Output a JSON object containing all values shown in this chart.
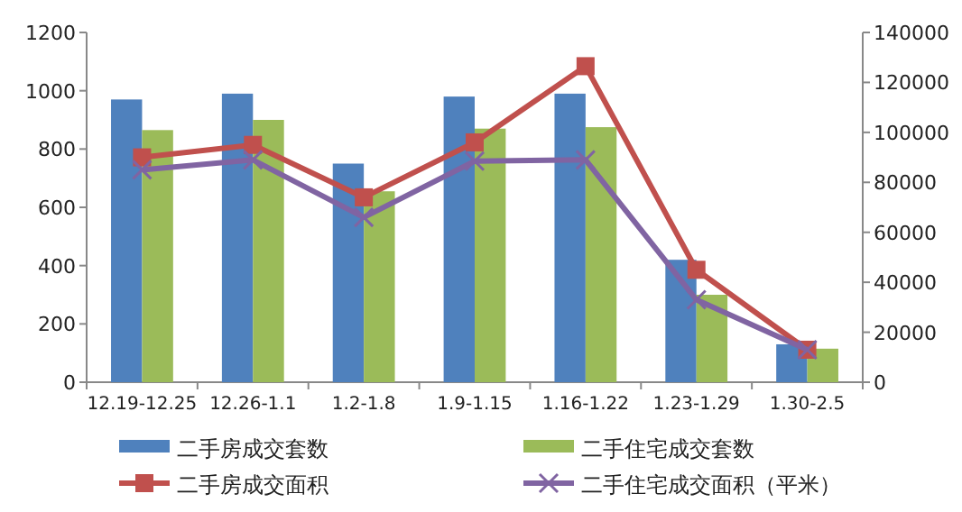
{
  "chart_data": {
    "type": "bar",
    "categories": [
      "12.19-12.25",
      "12.26-1.1",
      "1.2-1.8",
      "1.9-1.15",
      "1.16-1.22",
      "1.23-1.29",
      "1.30-2.5"
    ],
    "ylim": [
      0,
      1200
    ],
    "yticks": [
      0,
      200,
      400,
      600,
      800,
      1000,
      1200
    ],
    "y2lim": [
      0,
      140000
    ],
    "y2ticks": [
      0,
      20000,
      40000,
      60000,
      80000,
      100000,
      120000,
      140000
    ],
    "legend": "bottom",
    "grid": false,
    "series": [
      {
        "name": "二手房成交套数",
        "color": "#4f81bd",
        "values": [
          970,
          990,
          750,
          980,
          990,
          420,
          130
        ]
      },
      {
        "name": "二手住宅成交套数",
        "color": "#9bbb59",
        "values": [
          865,
          900,
          655,
          870,
          875,
          300,
          115
        ]
      },
      {
        "name": "二手房成交面积",
        "type": "line",
        "axis": "y2",
        "marker": "square",
        "color": "#c0504d",
        "values": [
          90000,
          95000,
          74000,
          96000,
          126500,
          45000,
          13000
        ]
      },
      {
        "name": "二手住宅成交面积（平米）",
        "type": "line",
        "axis": "y2",
        "marker": "cross",
        "color": "#8064a2",
        "values": [
          85000,
          89000,
          66000,
          88500,
          89000,
          33000,
          13000
        ]
      }
    ]
  }
}
